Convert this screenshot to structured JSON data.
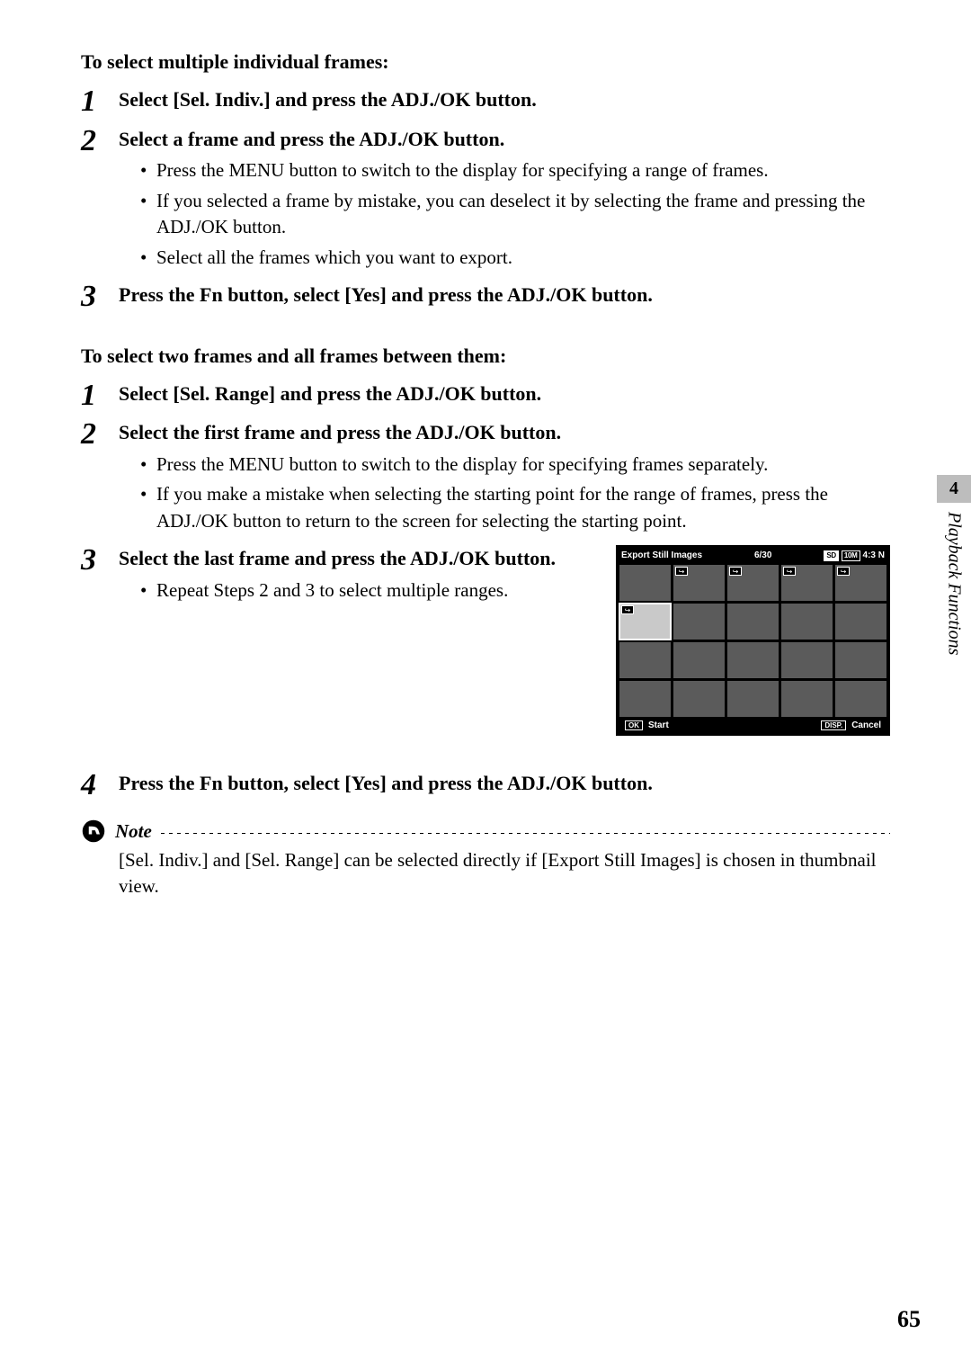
{
  "page": {
    "number": "65",
    "side_tab": {
      "chapter_num": "4",
      "chapter_title": "Playback Functions"
    }
  },
  "section_a": {
    "heading": "To select multiple individual frames:",
    "steps": [
      {
        "num": "1",
        "title": "Select [Sel. Indiv.] and press the ADJ./OK button.",
        "bullets": []
      },
      {
        "num": "2",
        "title": "Select a frame and press the ADJ./OK button.",
        "bullets": [
          "Press the MENU button to switch to the display for specifying a range of frames.",
          "If you selected a frame by mistake, you can deselect it by selecting the frame and pressing the ADJ./OK button.",
          "Select all the frames which you want to export."
        ]
      },
      {
        "num": "3",
        "title": "Press the Fn button, select [Yes] and press the ADJ./OK button.",
        "bullets": []
      }
    ]
  },
  "section_b": {
    "heading": "To select two frames and all frames between them:",
    "steps": [
      {
        "num": "1",
        "title": "Select [Sel. Range] and press the ADJ./OK button.",
        "bullets": []
      },
      {
        "num": "2",
        "title": "Select the first frame and press the ADJ./OK button.",
        "bullets": [
          "Press the MENU button to switch to the display for specifying frames separately.",
          "If you make a mistake when selecting the starting point for the range of frames, press the ADJ./OK button to return to the screen for selecting the starting point."
        ]
      },
      {
        "num": "3",
        "title": "Select the last frame and press the ADJ./OK button.",
        "bullets": [
          "Repeat Steps 2 and 3 to select multiple ranges."
        ]
      },
      {
        "num": "4",
        "title": "Press the Fn button, select [Yes] and press the ADJ./OK button.",
        "bullets": []
      }
    ]
  },
  "lcd": {
    "title": "Export Still Images",
    "counter": "6/30",
    "badges": {
      "sd": "SD",
      "res": "10M",
      "ratio": "4:3 N"
    },
    "grid": {
      "cols": 5,
      "rows": 4,
      "marked": [
        1,
        2,
        3,
        4,
        5
      ],
      "selected_index": 5
    },
    "bottom": {
      "ok_key": "OK",
      "ok_label": "Start",
      "disp_key": "DISP.",
      "disp_label": "Cancel"
    },
    "colors": {
      "bg": "#000000",
      "thumb": "#5b5b5b",
      "thumb_sel": "#c9c9c9",
      "text": "#ffffff"
    }
  },
  "note": {
    "label": "Note",
    "text": "[Sel. Indiv.] and [Sel. Range] can be selected directly if [Export Still Images] is chosen in thumbnail view."
  }
}
